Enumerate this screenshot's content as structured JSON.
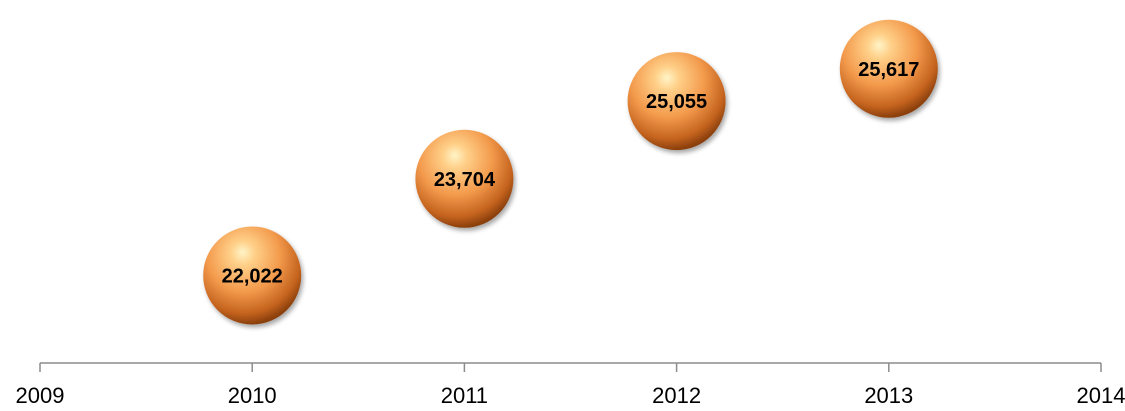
{
  "chart_data": {
    "type": "scatter",
    "title": "",
    "xlabel": "",
    "ylabel": "",
    "x_ticks": [
      "2009",
      "2010",
      "2011",
      "2012",
      "2013",
      "2014"
    ],
    "xlim": [
      2009,
      2014
    ],
    "ylim": [
      20500,
      26500
    ],
    "grid": false,
    "legend": "none",
    "marker_color": "#f0974a",
    "series": [
      {
        "points": [
          {
            "x": 2010,
            "y": 22022,
            "label": "22,022"
          },
          {
            "x": 2011,
            "y": 23704,
            "label": "23,704"
          },
          {
            "x": 2012,
            "y": 25055,
            "label": "25,055"
          },
          {
            "x": 2013,
            "y": 25617,
            "label": "25,617"
          }
        ]
      }
    ]
  }
}
